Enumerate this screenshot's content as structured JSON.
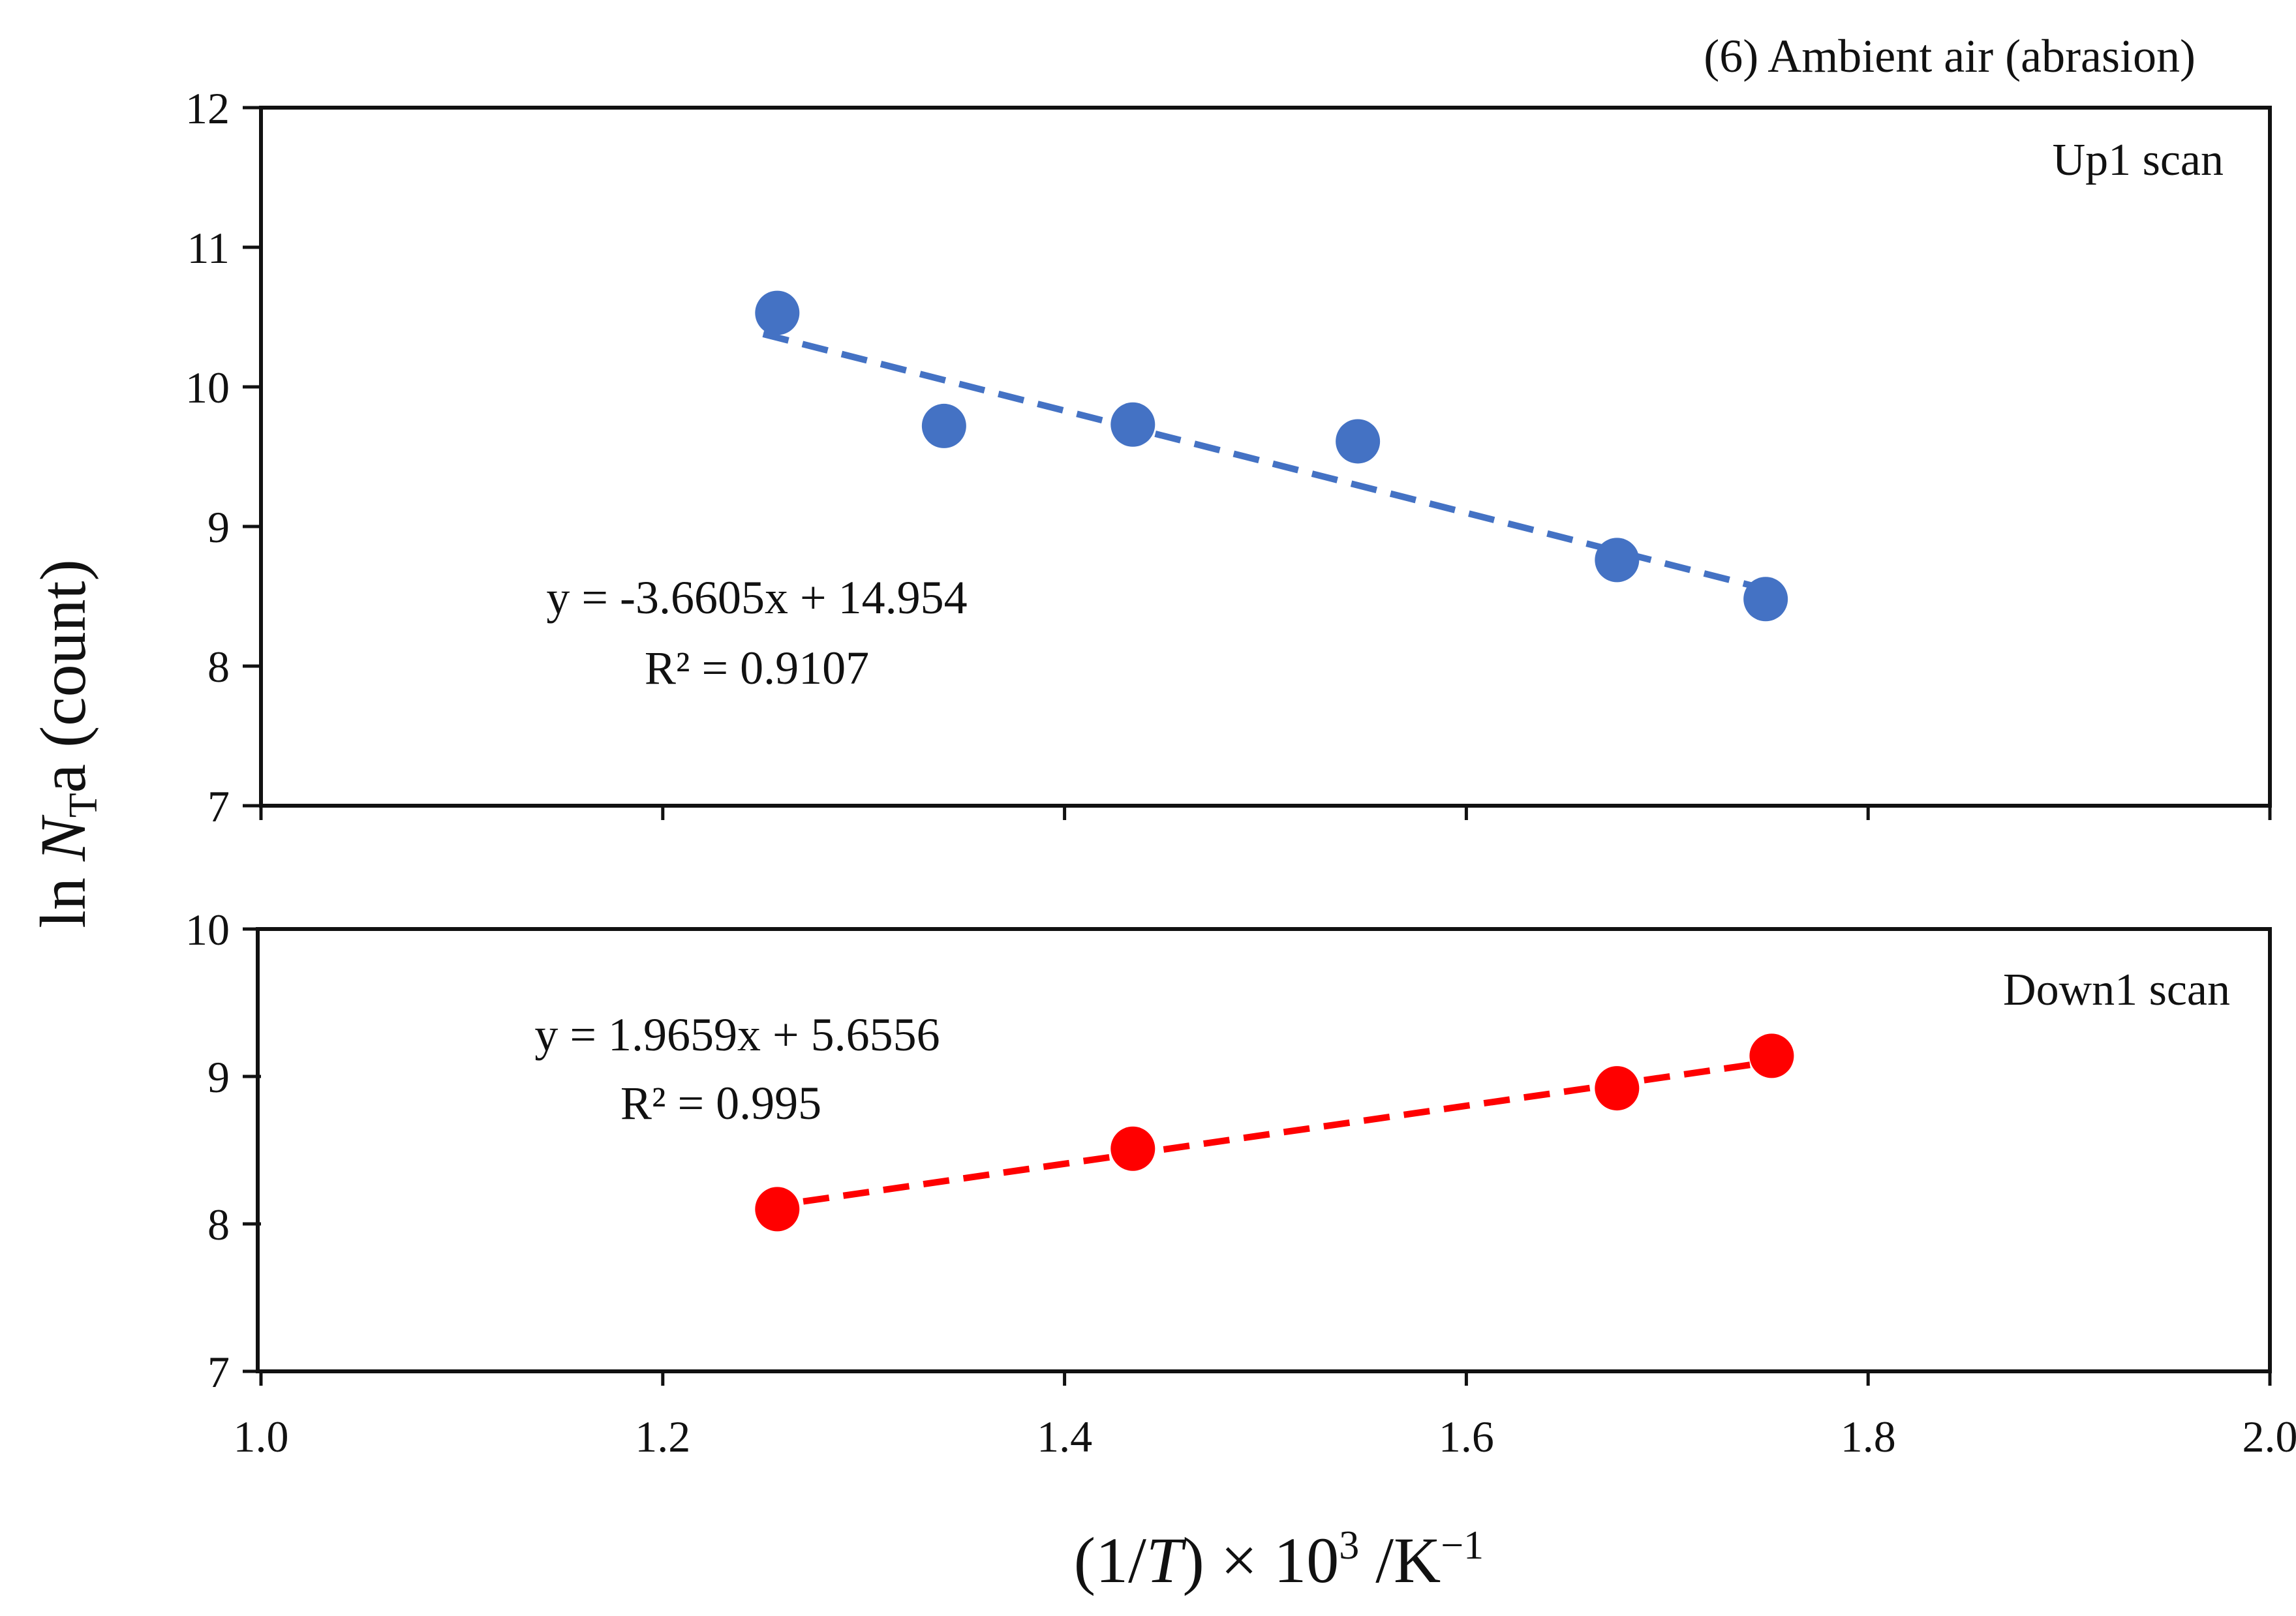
{
  "chart_data": {
    "type": "scatter",
    "title": "(6) Ambient air (abrasion)",
    "xlabel": "(1/T) × 10³ /K⁻¹",
    "ylabel": "ln NTa (count)",
    "xlim": [
      1.0,
      2.0
    ],
    "xticks": [
      "1.0",
      "1.2",
      "1.4",
      "1.6",
      "1.8",
      "2.0"
    ],
    "panels": [
      {
        "name": "Up1 scan",
        "label": "Up1 scan",
        "color": "#4472C4",
        "ylim": [
          7,
          12
        ],
        "yticks": [
          "7",
          "8",
          "9",
          "10",
          "11",
          "12"
        ],
        "x": [
          1.257,
          1.34,
          1.434,
          1.546,
          1.675,
          1.749
        ],
        "y": [
          10.53,
          9.72,
          9.73,
          9.61,
          8.76,
          8.48
        ],
        "fit": {
          "slope": -3.6605,
          "intercept": 14.954,
          "x_range": [
            1.25,
            1.749
          ]
        },
        "equation": "y = -3.6605x + 14.954",
        "r2": "R² = 0.9107"
      },
      {
        "name": "Down1 scan",
        "label": "Down1 scan",
        "color": "#FF0000",
        "ylim": [
          7,
          10
        ],
        "yticks": [
          "7",
          "8",
          "9",
          "10"
        ],
        "x": [
          1.257,
          1.434,
          1.675,
          1.752
        ],
        "y": [
          8.1,
          8.51,
          8.92,
          9.14
        ],
        "fit": {
          "slope": 1.9659,
          "intercept": 5.6556,
          "x_range": [
            1.25,
            1.752
          ]
        },
        "equation": "y = 1.9659x + 5.6556",
        "r2": "R² = 0.995"
      }
    ]
  }
}
